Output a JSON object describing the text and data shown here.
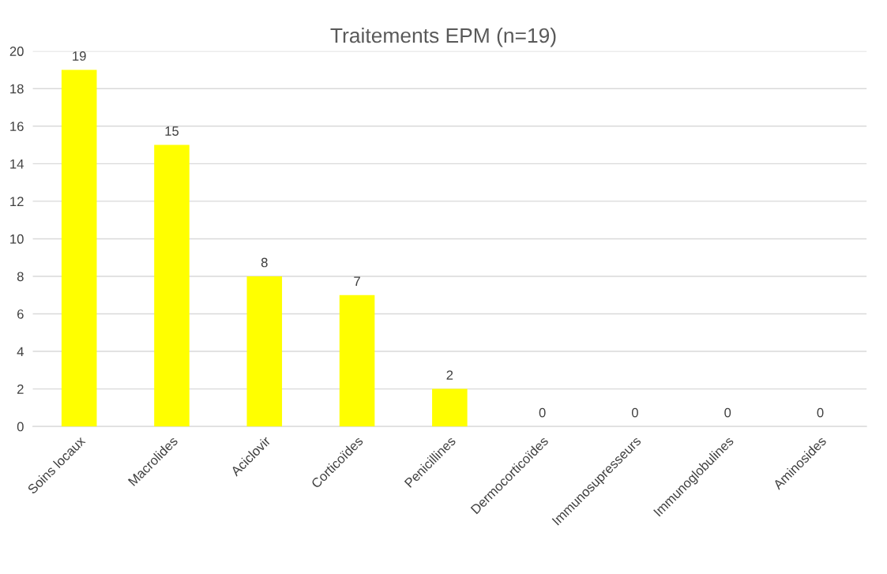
{
  "chart_data": {
    "type": "bar",
    "title": "Traitements EPM (n=19)",
    "categories": [
      "Soins locaux",
      "Macrolides",
      "Aciclovir",
      "Corticoïdes",
      "Penicillines",
      "Dermocorticoïdes",
      "Immunosupresseurs",
      "Immunoglobulines",
      "Aminosides"
    ],
    "values": [
      19,
      15,
      8,
      7,
      2,
      0,
      0,
      0,
      0
    ],
    "color": "#ffff00",
    "ylim": [
      0,
      20
    ],
    "yticks": [
      0,
      2,
      4,
      6,
      8,
      10,
      12,
      14,
      16,
      18,
      20
    ],
    "grid": "y",
    "data_labels": true,
    "legend": false
  }
}
